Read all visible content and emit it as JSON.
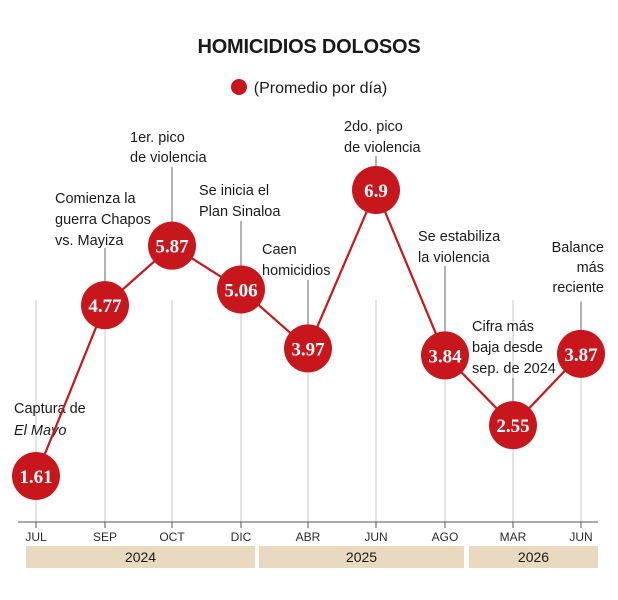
{
  "chart_data": {
    "type": "line",
    "title": "HOMICIDIOS DOLOSOS",
    "legend": {
      "label": "(Promedio por día)",
      "placement": "top-center"
    },
    "categories": [
      "JUL",
      "SEP",
      "OCT",
      "DIC",
      "ABR",
      "JUN",
      "AGO",
      "MAR",
      "JUN"
    ],
    "values": [
      1.61,
      4.77,
      5.87,
      5.06,
      3.97,
      6.9,
      3.84,
      2.55,
      3.87
    ],
    "value_labels": [
      "1.61",
      "4.77",
      "5.87",
      "5.06",
      "3.97",
      "6.9",
      "3.84",
      "2.55",
      "3.87"
    ],
    "annotations": [
      {
        "index": 0,
        "lines": [
          "Captura de",
          "El Mayo"
        ],
        "italic_line": 1
      },
      {
        "index": 1,
        "lines": [
          "Comienza la",
          "guerra Chapos",
          "vs. Mayiza"
        ]
      },
      {
        "index": 2,
        "lines": [
          "1er. pico",
          "de violencia"
        ]
      },
      {
        "index": 3,
        "lines": [
          "Se inicia el",
          "Plan Sinaloa"
        ]
      },
      {
        "index": 4,
        "lines": [
          "Caen",
          "homicidios"
        ]
      },
      {
        "index": 5,
        "lines": [
          "2do. pico",
          "de violencia"
        ]
      },
      {
        "index": 6,
        "lines": [
          "Se estabiliza",
          "la violencia"
        ]
      },
      {
        "index": 7,
        "lines": [
          "Cifra más",
          "baja desde",
          "sep. de 2024"
        ]
      },
      {
        "index": 8,
        "lines": [
          "Balance",
          "más",
          "reciente"
        ]
      }
    ],
    "year_groups": [
      {
        "label": "2024",
        "from": 0,
        "to": 3
      },
      {
        "label": "2025",
        "from": 4,
        "to": 6
      },
      {
        "label": "2026",
        "from": 7,
        "to": 8
      }
    ],
    "ylim": [
      1.61,
      6.9
    ],
    "grid": "vertical",
    "colors": {
      "marker": "#c8161d",
      "line": "#c8161d",
      "year_band": "#e8d9bf",
      "grid": "#c9c9c9"
    }
  }
}
